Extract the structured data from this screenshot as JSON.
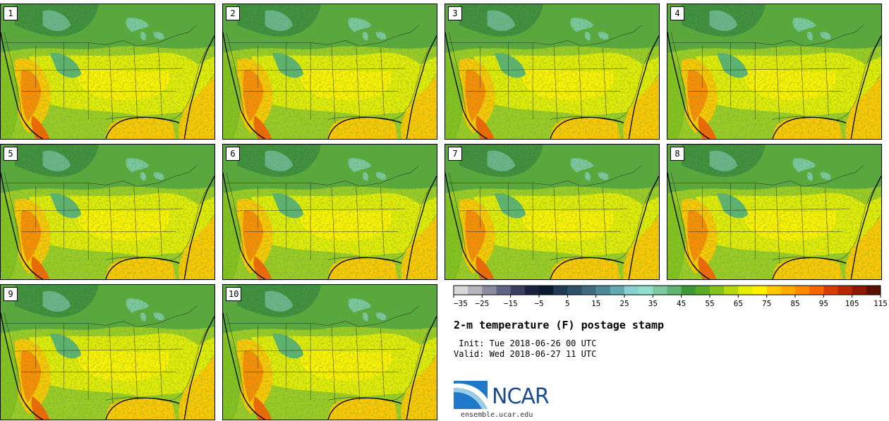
{
  "panels": [
    {
      "label": "1"
    },
    {
      "label": "2"
    },
    {
      "label": "3"
    },
    {
      "label": "4"
    },
    {
      "label": "5"
    },
    {
      "label": "6"
    },
    {
      "label": "7"
    },
    {
      "label": "8"
    },
    {
      "label": "9"
    },
    {
      "label": "10"
    }
  ],
  "colorbar": {
    "tick_labels": [
      "−35",
      "−25",
      "−15",
      "−5",
      "5",
      "15",
      "25",
      "35",
      "45",
      "55",
      "65",
      "75",
      "85",
      "95",
      "105",
      "115"
    ],
    "min": -35,
    "max": 120,
    "step": 5,
    "colors": [
      "#d8d8d8",
      "#b4b4bc",
      "#8c8ca0",
      "#5e6482",
      "#3a3f60",
      "#1a2240",
      "#0a1a33",
      "#203a55",
      "#2e506a",
      "#3e6a80",
      "#4e8898",
      "#62a8b0",
      "#86d2d0",
      "#8ee0d0",
      "#7cc8a0",
      "#5eb470",
      "#3c9a36",
      "#5aaa28",
      "#86c21c",
      "#b6d80e",
      "#e4ec04",
      "#fff200",
      "#ffc800",
      "#ffae00",
      "#ff8c00",
      "#f86400",
      "#d83c00",
      "#b82800",
      "#8c1800",
      "#5c1000"
    ]
  },
  "title": "2-m temperature (F) postage stamp",
  "init": " Init: Tue 2018-06-26 00 UTC",
  "valid": "Valid: Wed 2018-06-27 11 UTC",
  "logo": {
    "text": "NCAR",
    "url": "ensemble.ucar.edu"
  }
}
